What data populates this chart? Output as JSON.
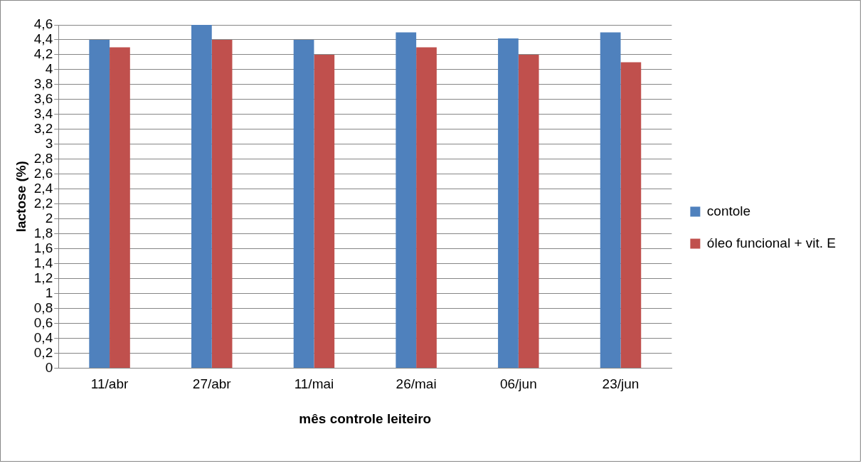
{
  "chart_data": {
    "type": "bar",
    "xlabel": "mês controle leiteiro",
    "ylabel": "lactose (%)",
    "categories": [
      "11/abr",
      "27/abr",
      "11/mai",
      "26/mai",
      "06/jun",
      "23/jun"
    ],
    "series": [
      {
        "name": "contole",
        "color": "#4f81bd",
        "values": [
          4.4,
          4.6,
          4.4,
          4.5,
          4.42,
          4.5
        ]
      },
      {
        "name": "óleo funcional + vit. E",
        "color": "#c0504d",
        "values": [
          4.3,
          4.4,
          4.2,
          4.3,
          4.2,
          4.1
        ]
      }
    ],
    "ylim": [
      0,
      4.6
    ],
    "yticks": [
      0,
      {
        "value": 0.2,
        "label": "0,2"
      },
      {
        "value": 0.4,
        "label": "0,4"
      },
      {
        "value": 0.6,
        "label": "0,6"
      },
      {
        "value": 0.8,
        "label": "0,8"
      },
      1,
      {
        "value": 1.2,
        "label": "1,2"
      },
      {
        "value": 1.4,
        "label": "1,4"
      },
      {
        "value": 1.6,
        "label": "1,6"
      },
      {
        "value": 1.8,
        "label": "1,8"
      },
      2,
      {
        "value": 2.2,
        "label": "2,2"
      },
      {
        "value": 2.4,
        "label": "2,4"
      },
      {
        "value": 2.6,
        "label": "2,6"
      },
      {
        "value": 2.8,
        "label": "2,8"
      },
      3,
      {
        "value": 3.2,
        "label": "3,2"
      },
      {
        "value": 3.4,
        "label": "3,4"
      },
      {
        "value": 3.6,
        "label": "3,6"
      },
      {
        "value": 3.8,
        "label": "3,8"
      },
      4,
      {
        "value": 4.2,
        "label": "4,2"
      },
      {
        "value": 4.4,
        "label": "4,4"
      },
      {
        "value": 4.6,
        "label": "4,6"
      }
    ],
    "grid": "y",
    "legend": "right"
  }
}
